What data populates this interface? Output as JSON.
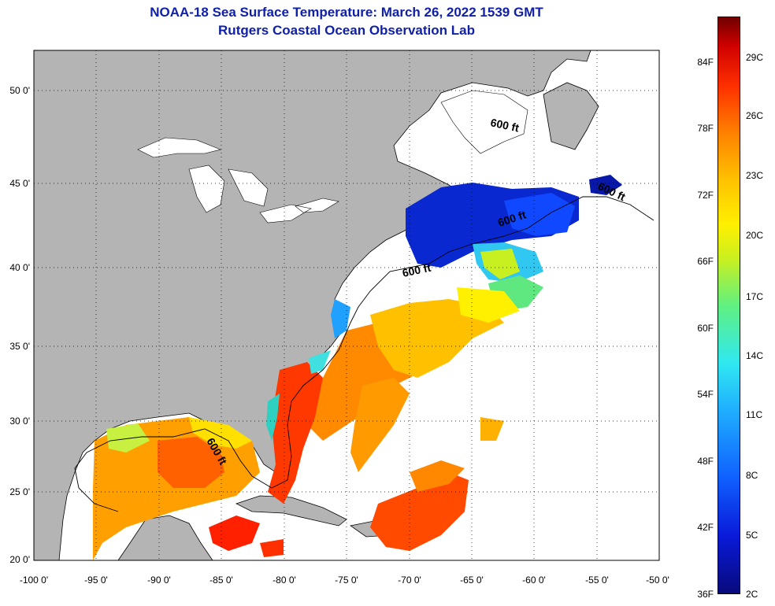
{
  "title": {
    "line1": "NOAA-18 Sea Surface Temperature:  March 26, 2022 1539 GMT",
    "line2": "Rutgers Coastal Ocean Observation Lab"
  },
  "map": {
    "lat_labels": [
      "50 0'",
      "45 0'",
      "40 0'",
      "35 0'",
      "30 0'",
      "25 0'",
      "20 0'"
    ],
    "lon_labels": [
      "-100 0'",
      "-95 0'",
      "-90 0'",
      "-85 0'",
      "-80 0'",
      "-75 0'",
      "-70 0'",
      "-65 0'",
      "-60 0'",
      "-55 0'",
      "-50 0'"
    ],
    "contour_label": "600 ft",
    "colors": {
      "land": "#b4b4b4",
      "no_data": "#ffffff",
      "grid": "#000000"
    }
  },
  "colorbar": {
    "fahrenheit": [
      "84F",
      "78F",
      "72F",
      "66F",
      "60F",
      "54F",
      "48F",
      "42F",
      "36F"
    ],
    "celsius": [
      "29C",
      "26C",
      "23C",
      "20C",
      "17C",
      "14C",
      "11C",
      "8C",
      "5C",
      "2C"
    ]
  }
}
